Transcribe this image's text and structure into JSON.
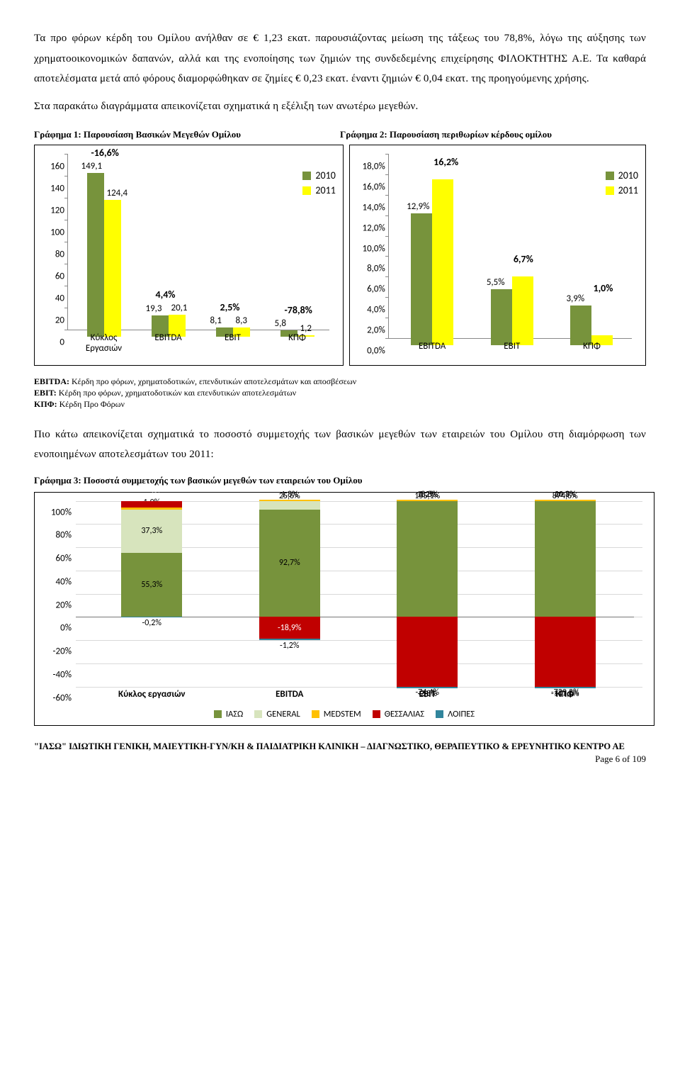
{
  "para1": "Τα προ φόρων κέρδη του Ομίλου ανήλθαν σε € 1,23 εκατ. παρουσιάζοντας μείωση της τάξεως του 78,8%, λόγω της αύξησης των χρηματοοικονομικών δαπανών, αλλά και της ενοποίησης των ζημιών της συνδεδεμένης επιχείρησης ΦΙΛΟΚΤΗΤΗΣ Α.Ε. Τα καθαρά αποτελέσματα μετά από φόρους διαμορφώθηκαν σε ζημίες € 0,23 εκατ. έναντι ζημιών € 0,04 εκατ. της προηγούμενης χρήσης.",
  "para2": "Στα παρακάτω διαγράμματα απεικονίζεται σχηματικά η εξέλιξη των ανωτέρω μεγεθών.",
  "chart1_title": "Γράφημα 1: Παρουσίαση Βασικών Μεγεθών Ομίλου",
  "chart2_title": "Γράφημα 2: Παρουσίαση περιθωρίων κέρδους ομίλου",
  "legend": {
    "y2010": "2010",
    "y2011": "2011"
  },
  "colors": {
    "series2010": "#77933c",
    "series2011": "#ffff00",
    "iaso": "#77933c",
    "general": "#d7e4bd",
    "medstem": "#ffc000",
    "thessalias": "#c00000",
    "loipes": "#31859c",
    "axis": "#888888",
    "grid": "#d9d9d9"
  },
  "chart1": {
    "ymax": 160,
    "ymin": 0,
    "ystep": 20,
    "categories": [
      "Κύκλος\nΕργασιών",
      "EBITDA",
      "EBIT",
      "ΚΠΦ"
    ],
    "v2010": [
      149.1,
      19.3,
      8.1,
      5.8
    ],
    "v2011": [
      124.4,
      20.1,
      8.3,
      1.2
    ],
    "pct": [
      "-16,6%",
      "4,4%",
      "2,5%",
      "-78,8%"
    ],
    "v2010_lbl": [
      "149,1",
      "19,3",
      "8,1",
      "5,8"
    ],
    "v2011_lbl": [
      "124,4",
      "20,1",
      "8,3",
      "1,2"
    ]
  },
  "chart2": {
    "ymax": 18.0,
    "ymin": 0.0,
    "ystep": 2.0,
    "categories": [
      "EBITDA",
      "EBIT",
      "ΚΠΦ"
    ],
    "v2010": [
      12.9,
      5.5,
      3.9
    ],
    "v2011": [
      16.2,
      6.7,
      1.0
    ],
    "pct": [
      "16,2%",
      "6,7%",
      "1,0%"
    ],
    "v2010_lbl": [
      "12,9%",
      "5,5%",
      "3,9%"
    ],
    "v2011_lbl": [
      "16,2%",
      "6,7%",
      "1,0%"
    ]
  },
  "defs": {
    "ebitda_t": "EBITDA:",
    "ebitda": " Κέρδη προ φόρων, χρηματοδοτικών, επενδυτικών αποτελεσμάτων και αποσβέσεων",
    "ebit_t": "EBIT:",
    "ebit": " Κέρδη προ φόρων, χρηματοδοτικών και επενδυτικών αποτελεσμάτων",
    "kpf_t": "ΚΠΦ:",
    "kpf": " Κέρδη Προ Φόρων"
  },
  "para3": "Πιο κάτω απεικονίζεται σχηματικά το ποσοστό συμμετοχής των βασικών μεγεθών των εταιρειών του Ομίλου στη διαμόρφωση των ενοποιημένων αποτελεσμάτων του 2011:",
  "chart3_title": "Γράφημα 3: Ποσοστά συμμετοχής των βασικών μεγεθών των εταιρειών του Ομίλου",
  "chart3": {
    "ymax": 100,
    "ymin": -60,
    "ystep": 20,
    "categories": [
      "Κύκλος εργασιών",
      "EBITDA",
      "EBIT",
      "ΚΠΦ"
    ],
    "legend": [
      "ΙΑΣΩ",
      "GENERAL",
      "MEDSTEM",
      "ΘΕΣΣΑΛΙΑΣ",
      "ΛΟΙΠΕΣ"
    ],
    "stacks": [
      {
        "pos": [
          {
            "c": "iaso",
            "v": 55.3,
            "l": "55,3%"
          },
          {
            "c": "general",
            "v": 37.3,
            "l": "37,3%"
          },
          {
            "c": "medstem",
            "v": 1.9,
            "l": "1,9%"
          },
          {
            "c": "thessalias",
            "v": 5.6,
            "l": "5,6%"
          }
        ],
        "neg": [
          {
            "c": "loipes",
            "v": -0.2,
            "l": "-0,2%"
          }
        ]
      },
      {
        "pos": [
          {
            "c": "iaso",
            "v": 92.7,
            "l": "92,7%"
          },
          {
            "c": "general",
            "v": 25.6,
            "l": "25,6%"
          },
          {
            "c": "medstem",
            "v": 1.8,
            "l": "1,8%"
          }
        ],
        "neg": [
          {
            "c": "thessalias",
            "v": -18.9,
            "l": "-18,9%"
          },
          {
            "c": "loipes",
            "v": -1.2,
            "l": "-1,2%"
          }
        ]
      },
      {
        "pos": [
          {
            "c": "iaso",
            "v": 155.1,
            "l": "155,1%"
          },
          {
            "c": "general",
            "v": 18.8,
            "l": "18,8%"
          },
          {
            "c": "medstem",
            "v": 3.2,
            "l": "3,2%"
          }
        ],
        "neg": [
          {
            "c": "thessalias",
            "v": -74.4,
            "l": "-74,4%"
          },
          {
            "c": "loipes",
            "v": -2.8,
            "l": "-2,8%"
          }
        ]
      },
      {
        "pos": [
          {
            "c": "iaso",
            "v": 874.6,
            "l": "874,6%"
          },
          {
            "c": "general",
            "v": 40.7,
            "l": "40,7%"
          },
          {
            "c": "medstem",
            "v": 24.8,
            "l": "24,8%"
          }
        ],
        "neg": [
          {
            "c": "thessalias",
            "v": -729.2,
            "l": "-729,2%"
          },
          {
            "c": "loipes",
            "v": -111.0,
            "l": "-111,0%"
          }
        ]
      }
    ]
  },
  "footer": "\"ΙΑΣΩ\" ΙΔΙΩΤΙΚΗ ΓΕΝΙΚΗ, ΜΑΙΕΥΤΙΚΗ-ΓΥΝ/ΚΗ & ΠΑΙΔΙΑΤΡΙΚΗ ΚΛΙΝΙΚΗ – ΔΙΑΓΝΩΣΤΙΚΟ, ΘΕΡΑΠΕΥΤΙΚΟ & ΕΡΕΥΝΗΤΙΚΟ ΚΕΝΤΡΟ ΑΕ",
  "page": "Page 6 of 109"
}
